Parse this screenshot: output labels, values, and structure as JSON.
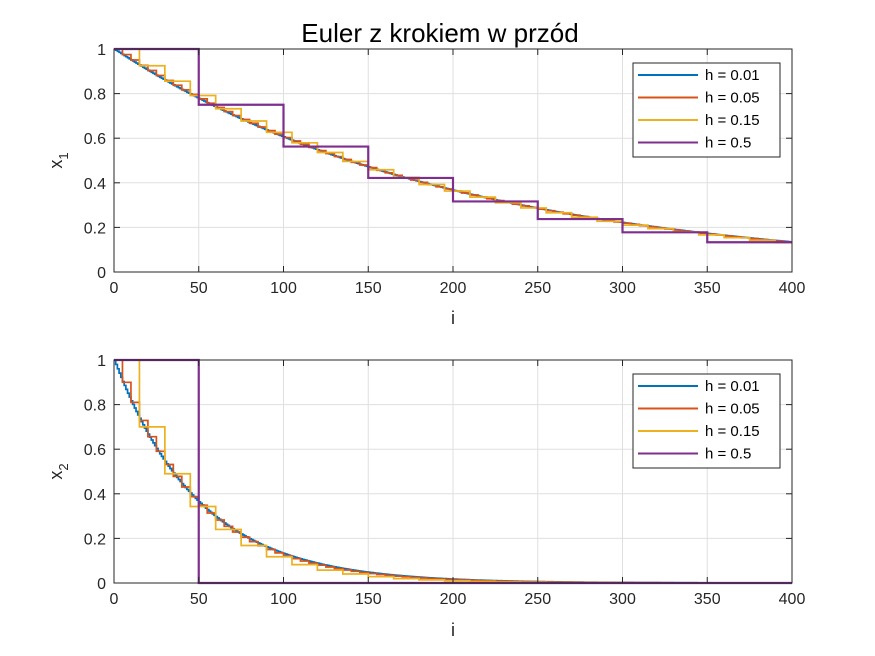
{
  "title": "Euler z krokiem w przód",
  "colors": {
    "h001": "#0072BD",
    "h005": "#D95319",
    "h015": "#EDB120",
    "h05": "#7E2F8E"
  },
  "chart_data": [
    {
      "type": "line",
      "step": true,
      "xlabel": "i",
      "ylabel": "x",
      "ylabel_sub": "1",
      "xlim": [
        0,
        400
      ],
      "ylim": [
        0,
        1
      ],
      "xticks": [
        "0",
        "50",
        "100",
        "150",
        "200",
        "250",
        "300",
        "350",
        "400"
      ],
      "yticks": [
        "0",
        "0.2",
        "0.4",
        "0.6",
        "0.8",
        "1"
      ],
      "grid": true,
      "legend_position": "top-right",
      "dt_per_index": 0.01,
      "series": [
        {
          "name": "h = 0.01",
          "h": 0.01,
          "decay": 0.5,
          "color": "#0072BD"
        },
        {
          "name": "h = 0.05",
          "h": 0.05,
          "decay": 0.5,
          "color": "#D95319"
        },
        {
          "name": "h = 0.15",
          "h": 0.15,
          "decay": 0.5,
          "color": "#EDB120"
        },
        {
          "name": "h = 0.5",
          "h": 0.5,
          "decay": 0.5,
          "color": "#7E2F8E"
        }
      ]
    },
    {
      "type": "line",
      "step": true,
      "xlabel": "i",
      "ylabel": "x",
      "ylabel_sub": "2",
      "xlim": [
        0,
        400
      ],
      "ylim": [
        0,
        1
      ],
      "xticks": [
        "0",
        "50",
        "100",
        "150",
        "200",
        "250",
        "300",
        "350",
        "400"
      ],
      "yticks": [
        "0",
        "0.2",
        "0.4",
        "0.6",
        "0.8",
        "1"
      ],
      "grid": true,
      "legend_position": "top-right",
      "dt_per_index": 0.01,
      "series": [
        {
          "name": "h = 0.01",
          "h": 0.01,
          "decay": 2,
          "color": "#0072BD"
        },
        {
          "name": "h = 0.05",
          "h": 0.05,
          "decay": 2,
          "color": "#D95319"
        },
        {
          "name": "h = 0.15",
          "h": 0.15,
          "decay": 2,
          "color": "#EDB120"
        },
        {
          "name": "h = 0.5",
          "h": 0.5,
          "decay": 2,
          "color": "#7E2F8E"
        }
      ]
    }
  ]
}
